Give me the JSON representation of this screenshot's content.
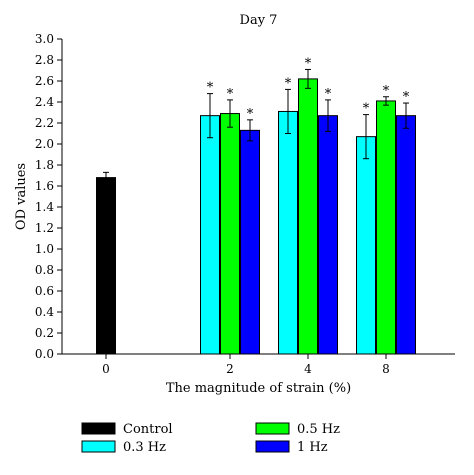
{
  "chart_data": {
    "type": "bar",
    "title": "Day 7",
    "xlabel": "The magnitude of strain (%)",
    "ylabel": "OD values",
    "ylim": [
      0,
      3.0
    ],
    "yticks": [
      "0.0",
      "0.2",
      "0.4",
      "0.6",
      "0.8",
      "1.0",
      "1.2",
      "1.4",
      "1.6",
      "1.8",
      "2.0",
      "2.2",
      "2.4",
      "2.6",
      "2.8",
      "3.0"
    ],
    "categories": [
      "0",
      "2",
      "4",
      "8"
    ],
    "grid": false,
    "legend_position": "bottom",
    "significance_marker": "*",
    "series": [
      {
        "name": "Control",
        "color": "#000000",
        "values": [
          1.68,
          null,
          null,
          null
        ],
        "errors": [
          0.05,
          null,
          null,
          null
        ],
        "significant": [
          false,
          false,
          false,
          false
        ]
      },
      {
        "name": "0.3 Hz",
        "color": "#00FFFF",
        "values": [
          null,
          2.27,
          2.31,
          2.07
        ],
        "errors": [
          null,
          0.21,
          0.21,
          0.21
        ],
        "significant": [
          false,
          true,
          true,
          true
        ]
      },
      {
        "name": "0.5 Hz",
        "color": "#00FF00",
        "values": [
          null,
          2.29,
          2.62,
          2.41
        ],
        "errors": [
          null,
          0.13,
          0.09,
          0.04
        ],
        "significant": [
          false,
          true,
          true,
          true
        ]
      },
      {
        "name": "1 Hz",
        "color": "#0000FF",
        "values": [
          null,
          2.13,
          2.27,
          2.27
        ],
        "errors": [
          null,
          0.1,
          0.15,
          0.12
        ],
        "significant": [
          false,
          true,
          true,
          true
        ]
      }
    ]
  }
}
